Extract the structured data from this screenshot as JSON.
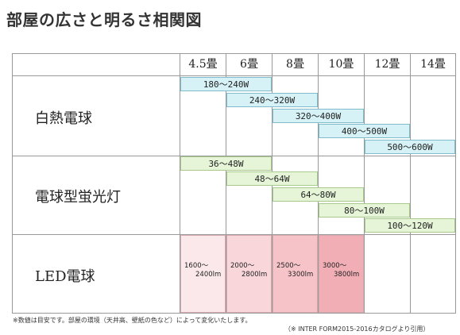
{
  "title": "部屋の広さと明るさ相関図",
  "columns": [
    "4.5畳",
    "6畳",
    "8畳",
    "10畳",
    "12畳",
    "14畳"
  ],
  "categories": {
    "incandescent": "白熱電球",
    "fluorescent": "電球型蛍光灯",
    "led": "LED電球"
  },
  "incandescent_ranges": [
    "180～240W",
    "240～320W",
    "320～400W",
    "400～500W",
    "500～600W"
  ],
  "fluorescent_ranges": [
    "36～48W",
    "48～64W",
    "64～80W",
    "80～100W",
    "100～120W"
  ],
  "led_ranges": [
    {
      "line1": "1600～",
      "line2": "2400lm"
    },
    {
      "line1": "2000～",
      "line2": "2800lm"
    },
    {
      "line1": "2500～",
      "line2": "3300lm"
    },
    {
      "line1": "3000～",
      "line2": "3800lm"
    }
  ],
  "colors": {
    "incandescent_fill": "#d6f2f6",
    "fluorescent_fill": "#e6f5d8",
    "led_fills": [
      "#fbe8ea",
      "#f8d6da",
      "#f5c3c8",
      "#f1aeb5"
    ]
  },
  "footnote": "※数値は目安です。部屋の環境（天井高、壁紙の色など）によって変化いたします。",
  "source": "（※ INTER FORM2015-2016カタログより引用）"
}
